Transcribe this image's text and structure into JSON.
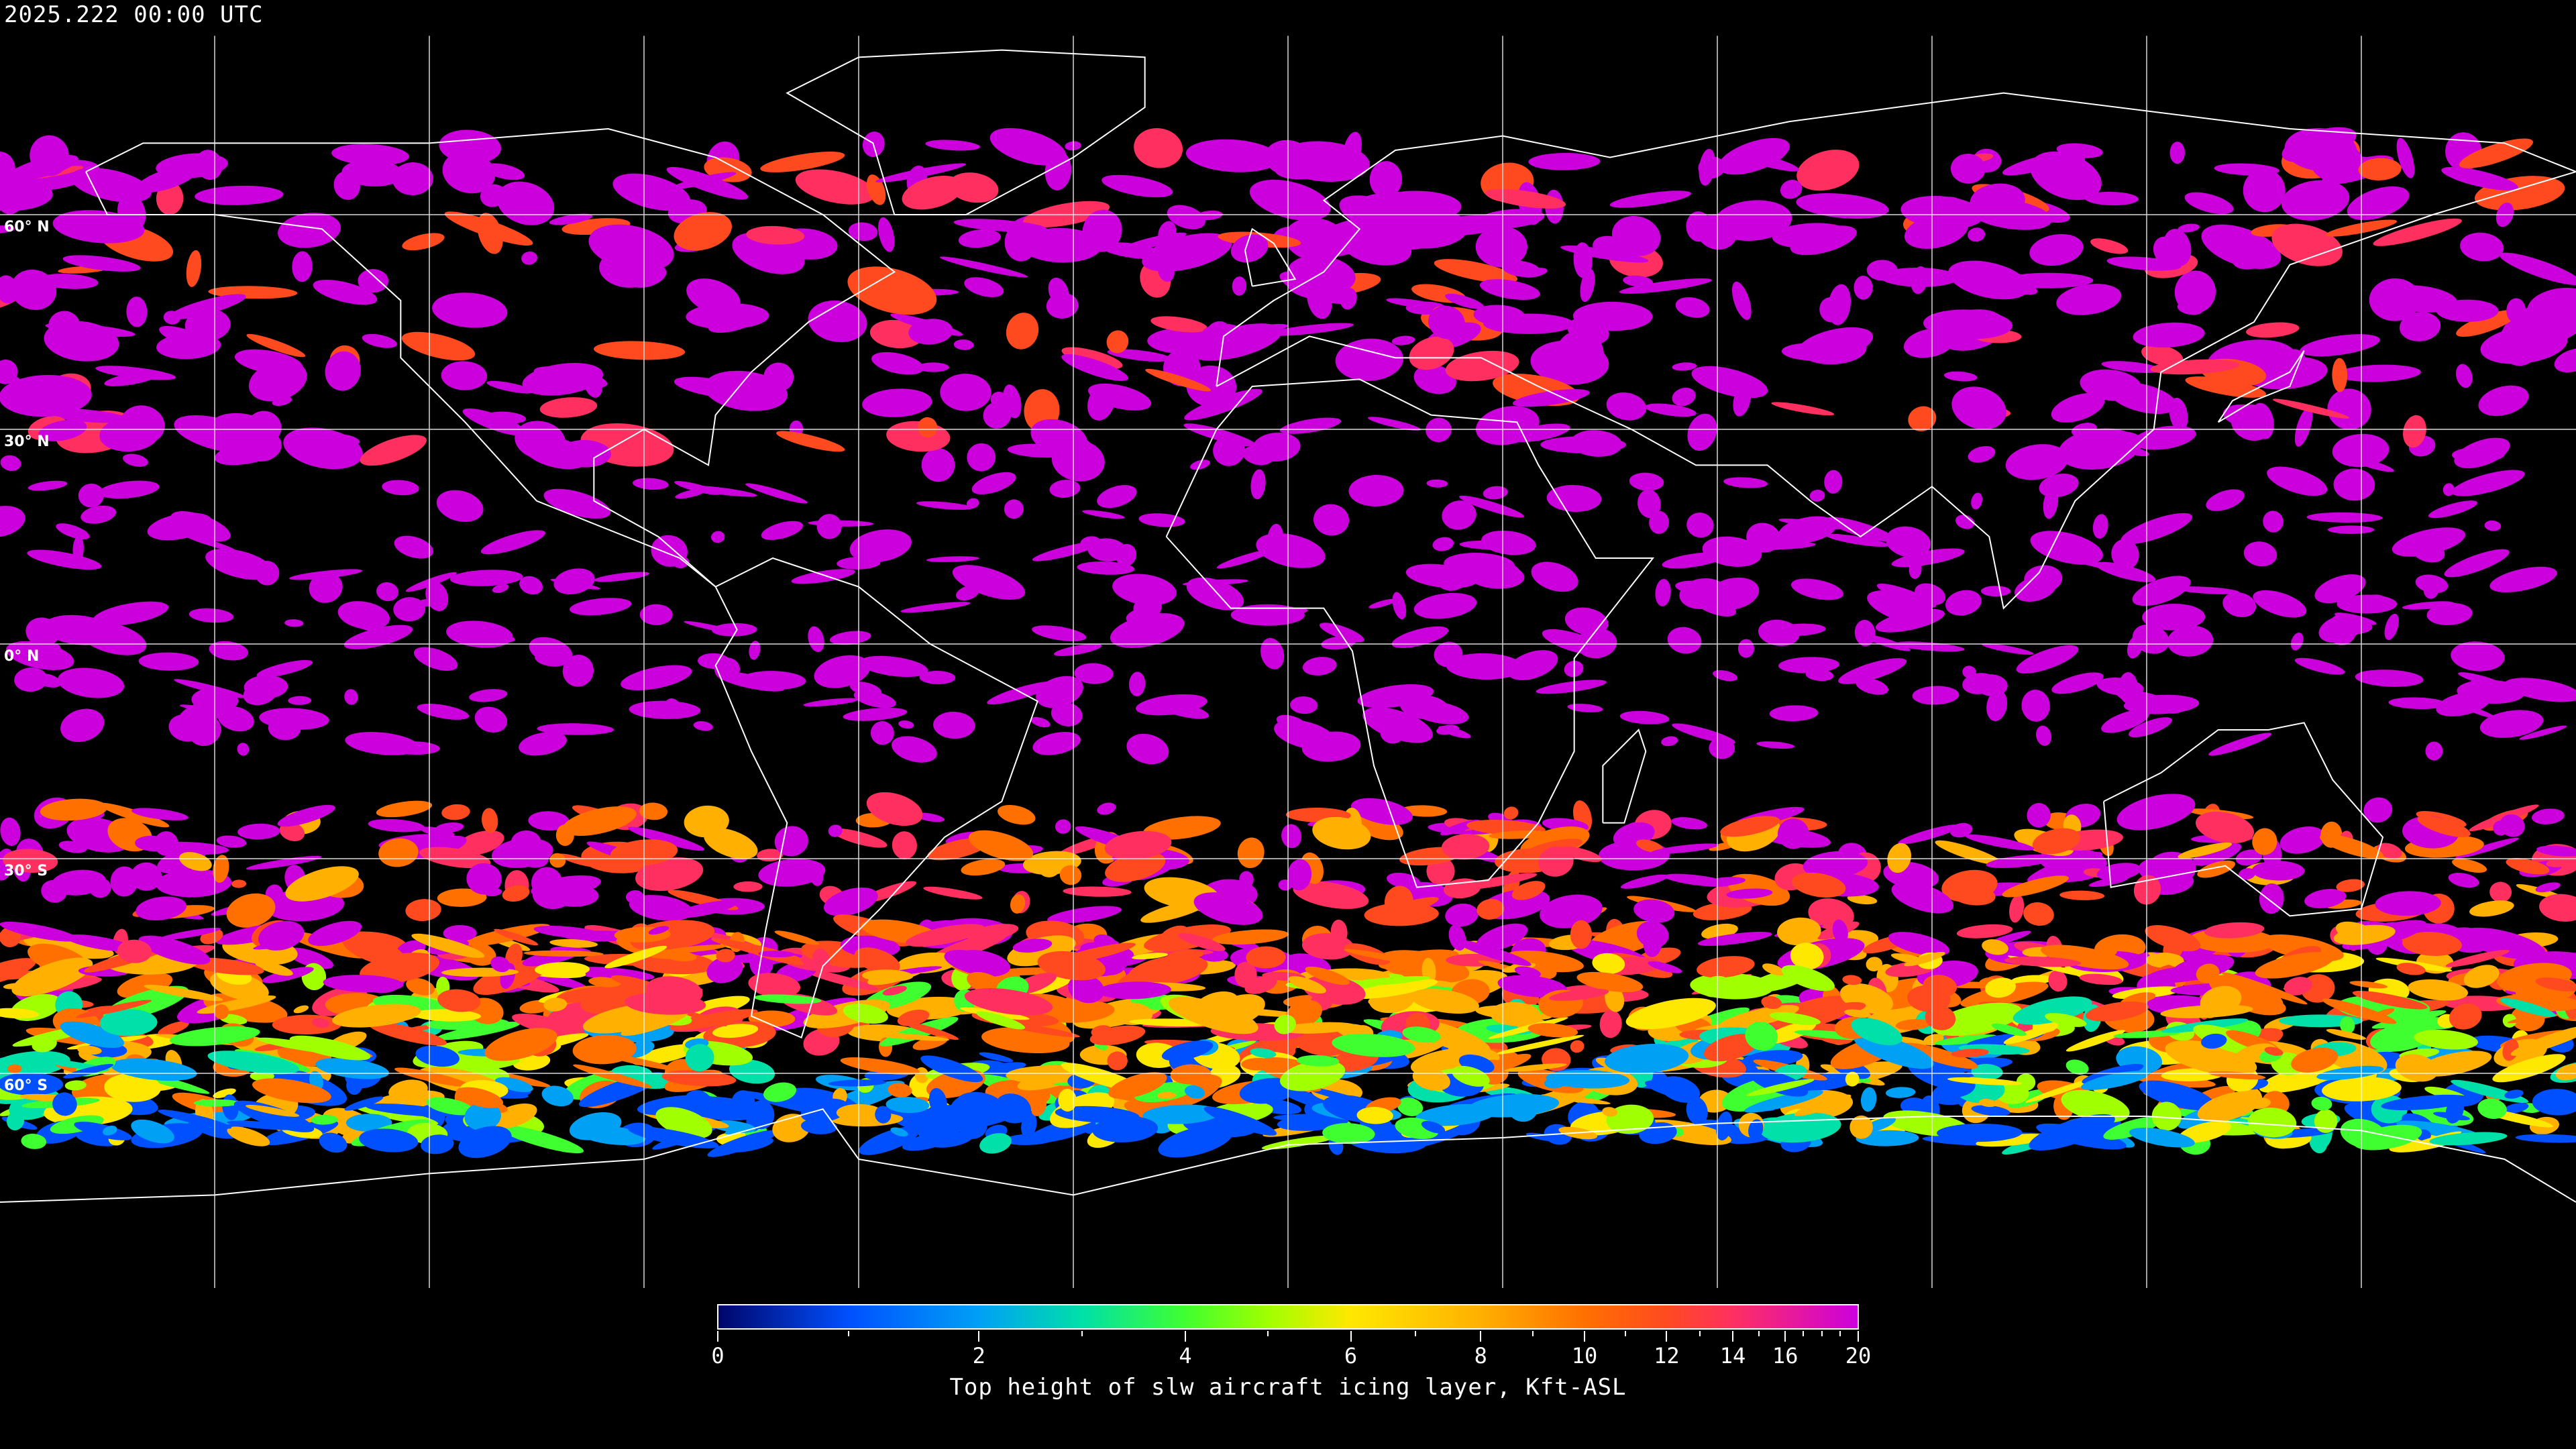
{
  "header": {
    "timestamp": "2025.222 00:00 UTC"
  },
  "map": {
    "projection": "equirectangular",
    "background": "#000000",
    "grid_color": "#ffffff",
    "coastline_color": "#ffffff",
    "lat_labels": [
      "60° N",
      "30° N",
      "0° N",
      "30° S",
      "60° S"
    ],
    "lat_values": [
      60,
      30,
      0,
      -30,
      -60
    ],
    "lon_gridlines": [
      -150,
      -120,
      -90,
      -60,
      -30,
      0,
      30,
      60,
      90,
      120,
      150
    ]
  },
  "colorbar": {
    "title": "Top height of slw aircraft icing layer, Kft-ASL",
    "min": 0,
    "max": 20,
    "major_ticks": [
      "0",
      "2",
      "4",
      "6",
      "8",
      "10",
      "12",
      "14",
      "16",
      "20"
    ],
    "minor_ticks": [
      1,
      3,
      5,
      7,
      9,
      11,
      13,
      15,
      17,
      18,
      19
    ],
    "colormap": [
      {
        "value": 0,
        "color": "#00066a"
      },
      {
        "value": 1,
        "color": "#0050ff"
      },
      {
        "value": 2,
        "color": "#00a0f5"
      },
      {
        "value": 3,
        "color": "#00e0a8"
      },
      {
        "value": 4,
        "color": "#40ff30"
      },
      {
        "value": 5,
        "color": "#a0ff00"
      },
      {
        "value": 6,
        "color": "#ffe800"
      },
      {
        "value": 8,
        "color": "#ffb000"
      },
      {
        "value": 10,
        "color": "#ff7000"
      },
      {
        "value": 12,
        "color": "#ff4a20"
      },
      {
        "value": 14,
        "color": "#ff3060"
      },
      {
        "value": 20,
        "color": "#cc00dd"
      }
    ]
  }
}
